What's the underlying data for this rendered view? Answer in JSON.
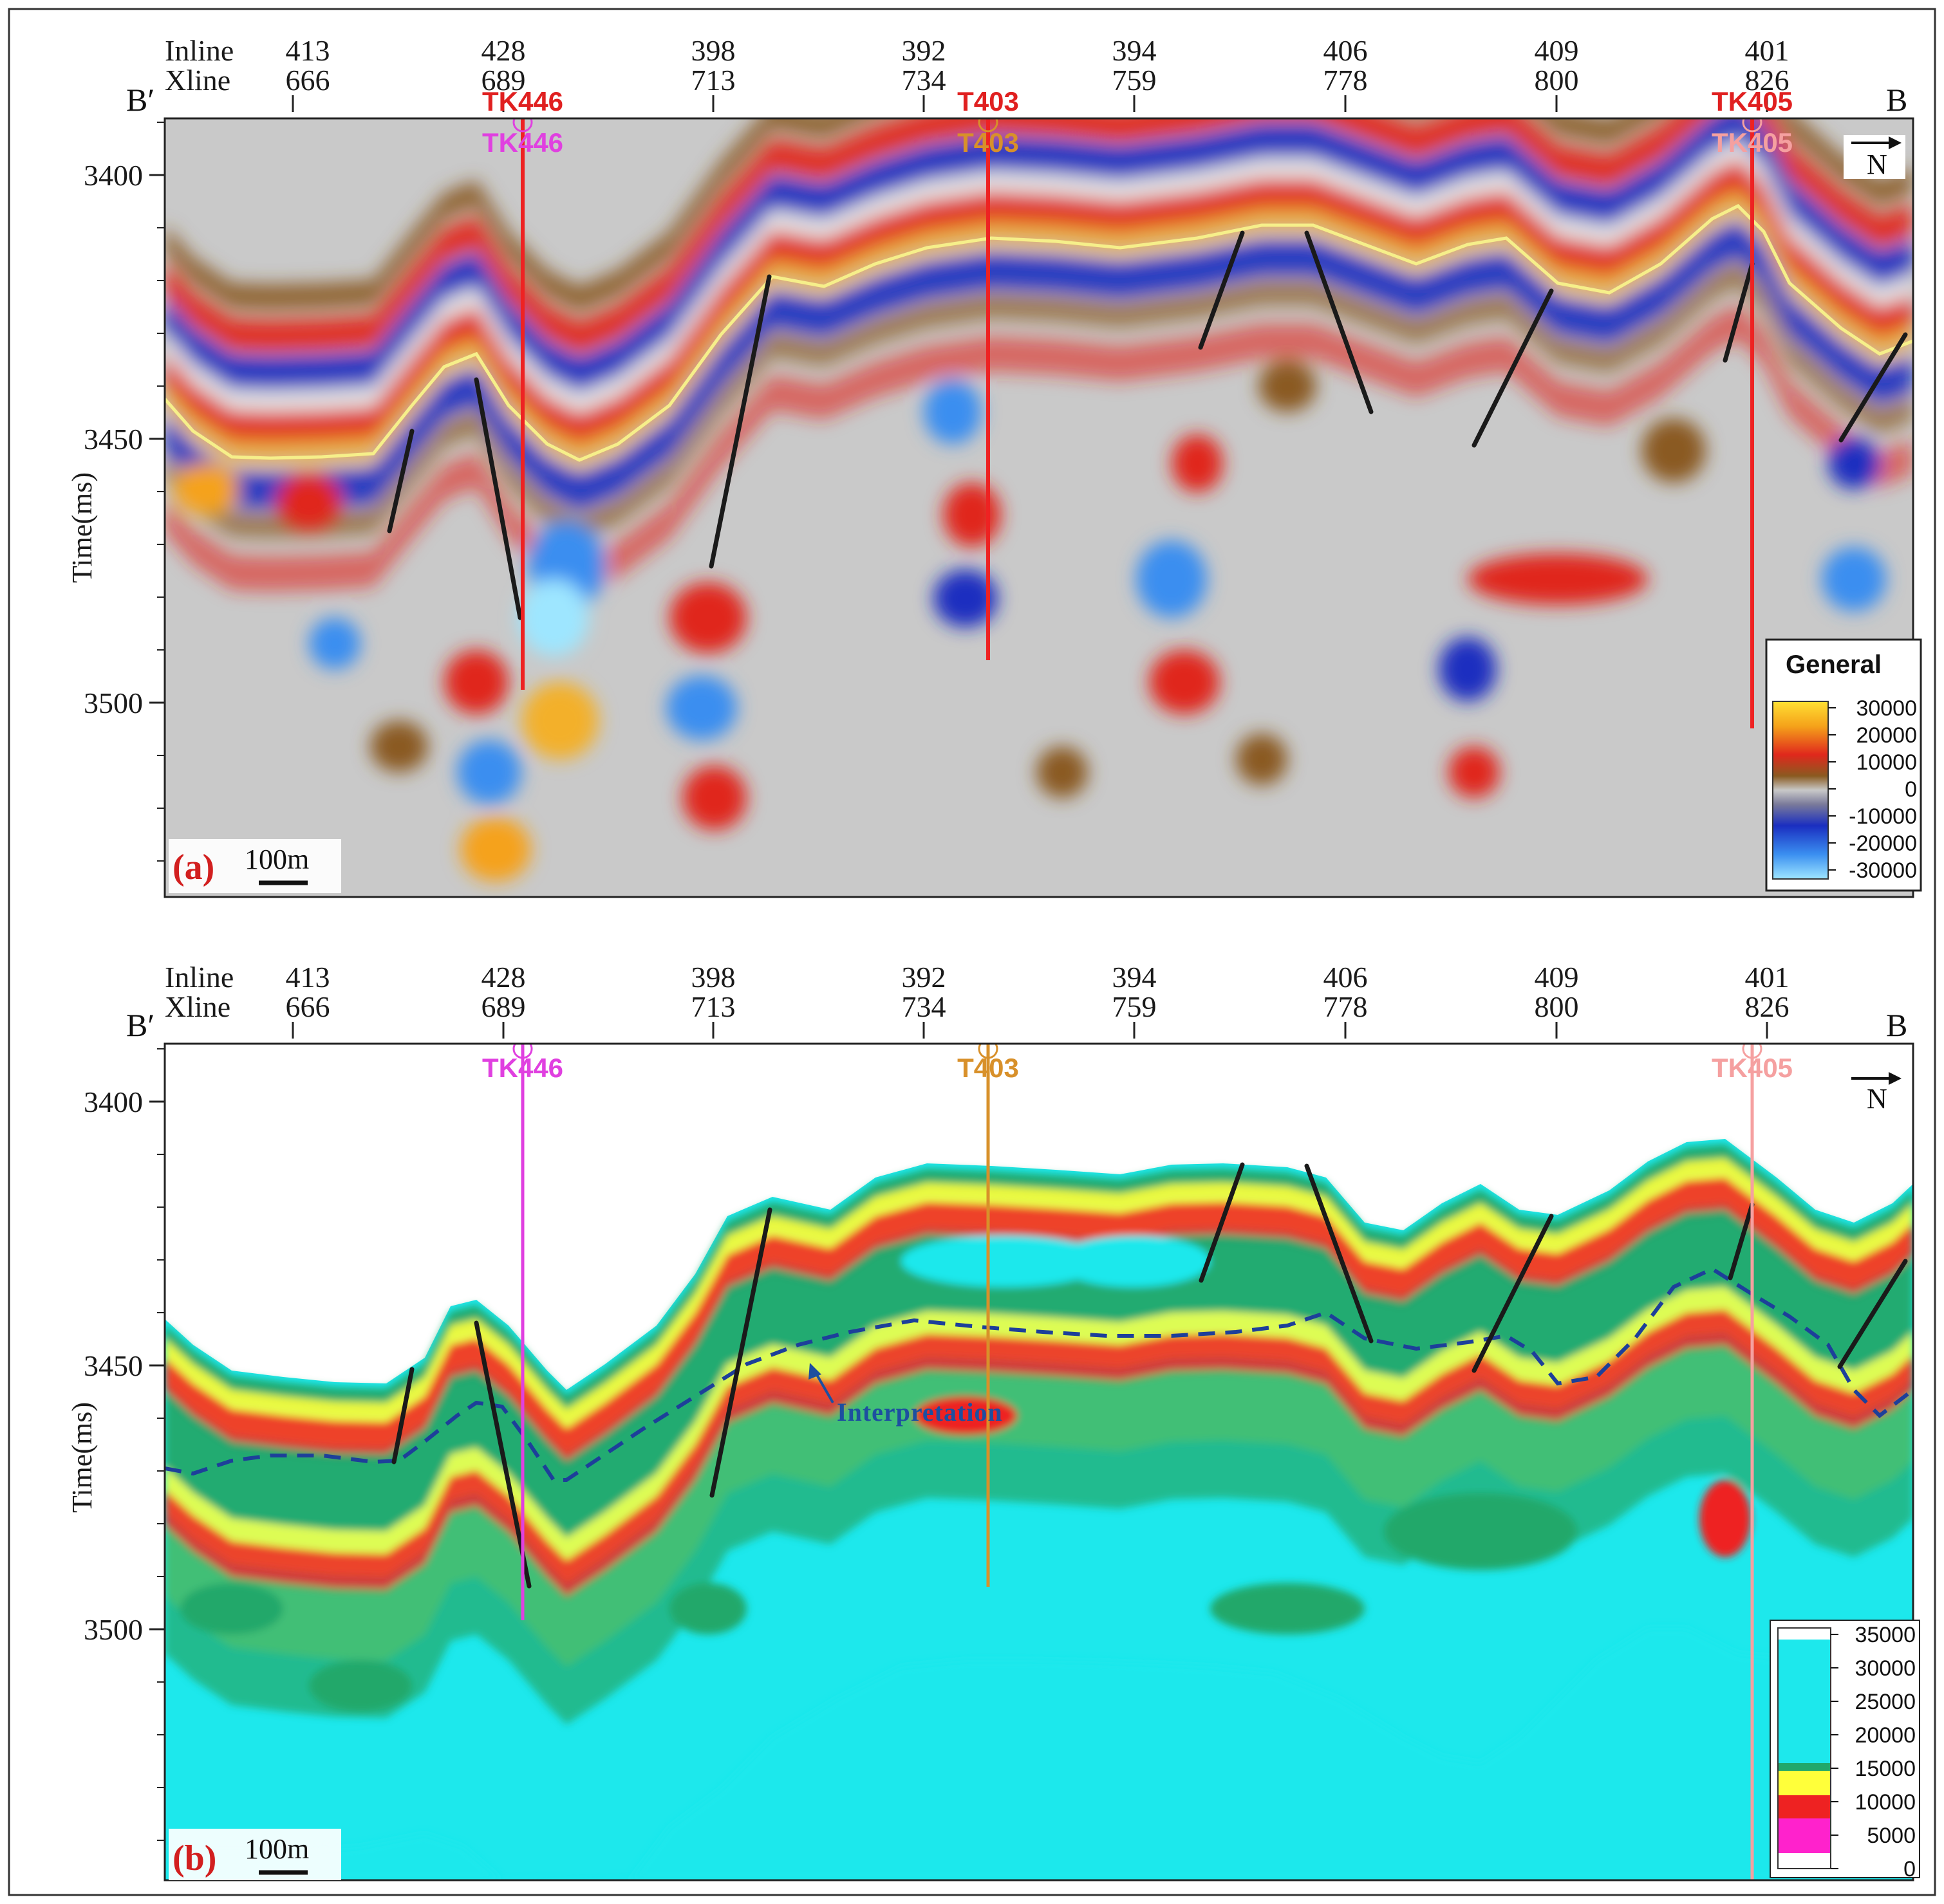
{
  "chart_data": [
    {
      "type": "heatmap",
      "panel_label": "(a)",
      "scale_bar": "100m",
      "ylabel": "Time(ms)",
      "yticks": [
        3400,
        3450,
        3500
      ],
      "ylim": [
        3400,
        3535
      ],
      "left_end": "B′",
      "right_end": "B",
      "north": "N",
      "axis_row_titles": [
        "Inline",
        "Xline"
      ],
      "traces": [
        {
          "inline": "413",
          "xline": "666"
        },
        {
          "inline": "428",
          "xline": "689"
        },
        {
          "inline": "398",
          "xline": "713"
        },
        {
          "inline": "392",
          "xline": "734"
        },
        {
          "inline": "394",
          "xline": "759"
        },
        {
          "inline": "406",
          "xline": "778"
        },
        {
          "inline": "409",
          "xline": "800"
        },
        {
          "inline": "401",
          "xline": "826"
        }
      ],
      "wells_top": [
        "TK446",
        "T403",
        "TK405"
      ],
      "wells_inner": [
        {
          "name": "TK446",
          "color": "#e040e0"
        },
        {
          "name": "T403",
          "color": "#d8902a"
        },
        {
          "name": "TK405",
          "color": "#f5a0a0"
        }
      ],
      "legend": {
        "title": "General",
        "ticks": [
          "30000",
          "20000",
          "10000",
          "0",
          "-10000",
          "-20000",
          "-30000"
        ]
      }
    },
    {
      "type": "heatmap",
      "panel_label": "(b)",
      "scale_bar": "100m",
      "ylabel": "Time(ms)",
      "yticks": [
        3400,
        3450,
        3500
      ],
      "ylim": [
        3390,
        3545
      ],
      "left_end": "B′",
      "right_end": "B",
      "north": "N",
      "axis_row_titles": [
        "Inline",
        "Xline"
      ],
      "traces": [
        {
          "inline": "413",
          "xline": "666"
        },
        {
          "inline": "428",
          "xline": "689"
        },
        {
          "inline": "398",
          "xline": "713"
        },
        {
          "inline": "392",
          "xline": "734"
        },
        {
          "inline": "394",
          "xline": "759"
        },
        {
          "inline": "406",
          "xline": "778"
        },
        {
          "inline": "409",
          "xline": "800"
        },
        {
          "inline": "401",
          "xline": "826"
        }
      ],
      "wells_inner": [
        {
          "name": "TK446",
          "color": "#e040e0"
        },
        {
          "name": "T403",
          "color": "#d8902a"
        },
        {
          "name": "TK405",
          "color": "#f5a0a0"
        }
      ],
      "annotation": "Interpretation",
      "legend": {
        "ticks": [
          "35000",
          "30000",
          "25000",
          "20000",
          "15000",
          "10000",
          "5000",
          "0"
        ]
      }
    }
  ]
}
